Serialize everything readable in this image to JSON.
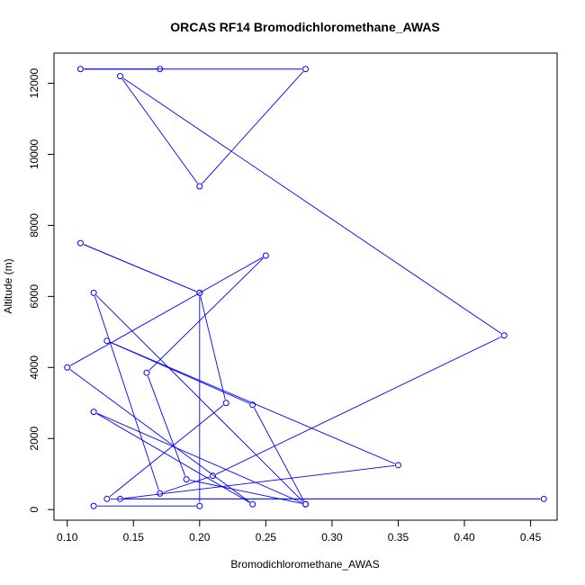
{
  "chart_data": {
    "type": "line",
    "title": "ORCAS RF14 Bromodichloromethane_AWAS",
    "xlabel": "Bromodichloromethane_AWAS",
    "ylabel": "Altitude (m)",
    "xlim": [
      0.09,
      0.47
    ],
    "ylim": [
      -300,
      12850
    ],
    "x_ticks": [
      0.1,
      0.15,
      0.2,
      0.25,
      0.3,
      0.35,
      0.4,
      0.45
    ],
    "x_tick_labels": [
      "0.10",
      "0.15",
      "0.20",
      "0.25",
      "0.30",
      "0.35",
      "0.40",
      "0.45"
    ],
    "y_ticks": [
      0,
      2000,
      4000,
      6000,
      8000,
      10000,
      12000
    ],
    "y_tick_labels": [
      "0",
      "2000",
      "4000",
      "6000",
      "8000",
      "10000",
      "12000"
    ],
    "grid": false,
    "color": "#0000ff",
    "points": [
      {
        "x": 0.12,
        "y": 100
      },
      {
        "x": 0.2,
        "y": 100
      },
      {
        "x": 0.2,
        "y": 6100
      },
      {
        "x": 0.11,
        "y": 7500
      },
      {
        "x": 0.2,
        "y": 6100
      },
      {
        "x": 0.22,
        "y": 3000
      },
      {
        "x": 0.13,
        "y": 300
      },
      {
        "x": 0.46,
        "y": 300
      },
      {
        "x": 0.14,
        "y": 300
      },
      {
        "x": 0.35,
        "y": 1250
      },
      {
        "x": 0.13,
        "y": 4750
      },
      {
        "x": 0.24,
        "y": 2950
      },
      {
        "x": 0.28,
        "y": 150
      },
      {
        "x": 0.12,
        "y": 2750
      },
      {
        "x": 0.24,
        "y": 150
      },
      {
        "x": 0.1,
        "y": 4000
      },
      {
        "x": 0.25,
        "y": 7150
      },
      {
        "x": 0.16,
        "y": 3850
      },
      {
        "x": 0.19,
        "y": 850
      },
      {
        "x": 0.28,
        "y": 150
      },
      {
        "x": 0.12,
        "y": 6100
      },
      {
        "x": 0.17,
        "y": 450
      },
      {
        "x": 0.21,
        "y": 950
      },
      {
        "x": 0.43,
        "y": 4900
      },
      {
        "x": 0.14,
        "y": 12200
      },
      {
        "x": 0.2,
        "y": 9100
      },
      {
        "x": 0.28,
        "y": 12400
      },
      {
        "x": 0.11,
        "y": 12400
      },
      {
        "x": 0.17,
        "y": 12400
      }
    ]
  }
}
